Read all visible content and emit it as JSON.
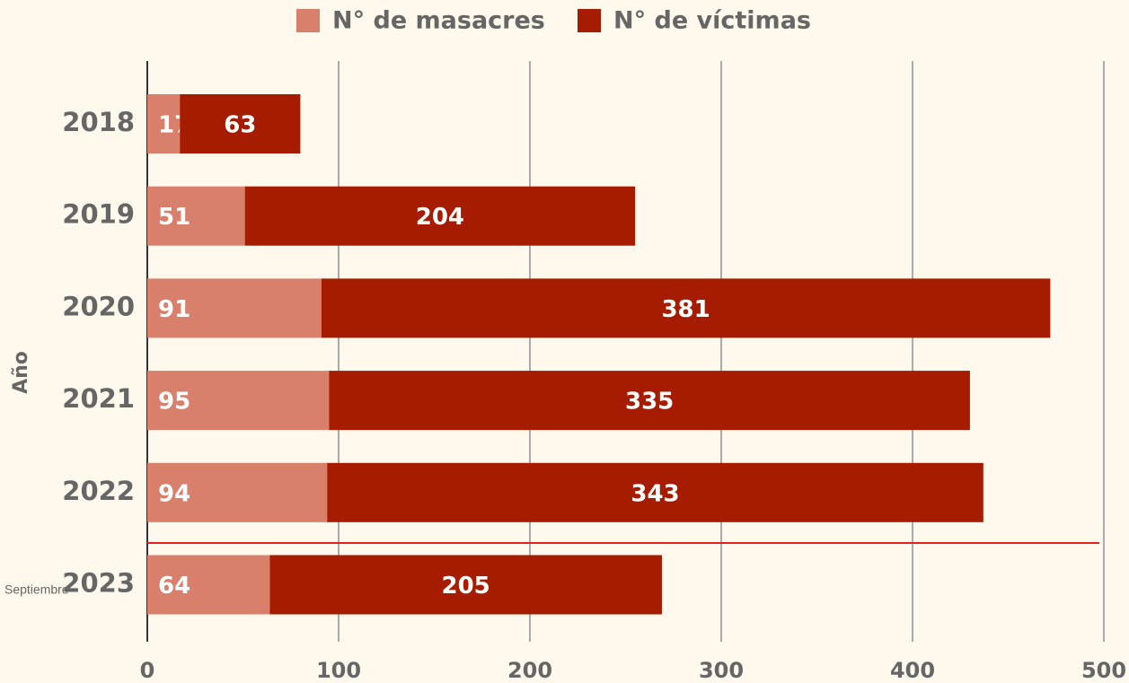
{
  "chart_data": {
    "type": "stacked_bar",
    "orientation": "horizontal",
    "y_label": "Año",
    "categories": [
      "2018",
      "2019",
      "2020",
      "2021",
      "2022",
      "2023"
    ],
    "annotation": "Septiembre",
    "series": [
      {
        "name": "N° de masacres",
        "color": "#d9806d",
        "values": [
          17,
          51,
          91,
          95,
          94,
          64
        ]
      },
      {
        "name": "N° de víctimas",
        "color": "#a51c00",
        "values": [
          63,
          204,
          381,
          335,
          343,
          205
        ]
      }
    ],
    "xlim": [
      0,
      500
    ],
    "xticks": [
      0,
      100,
      200,
      300,
      400,
      500
    ],
    "grid": true
  }
}
